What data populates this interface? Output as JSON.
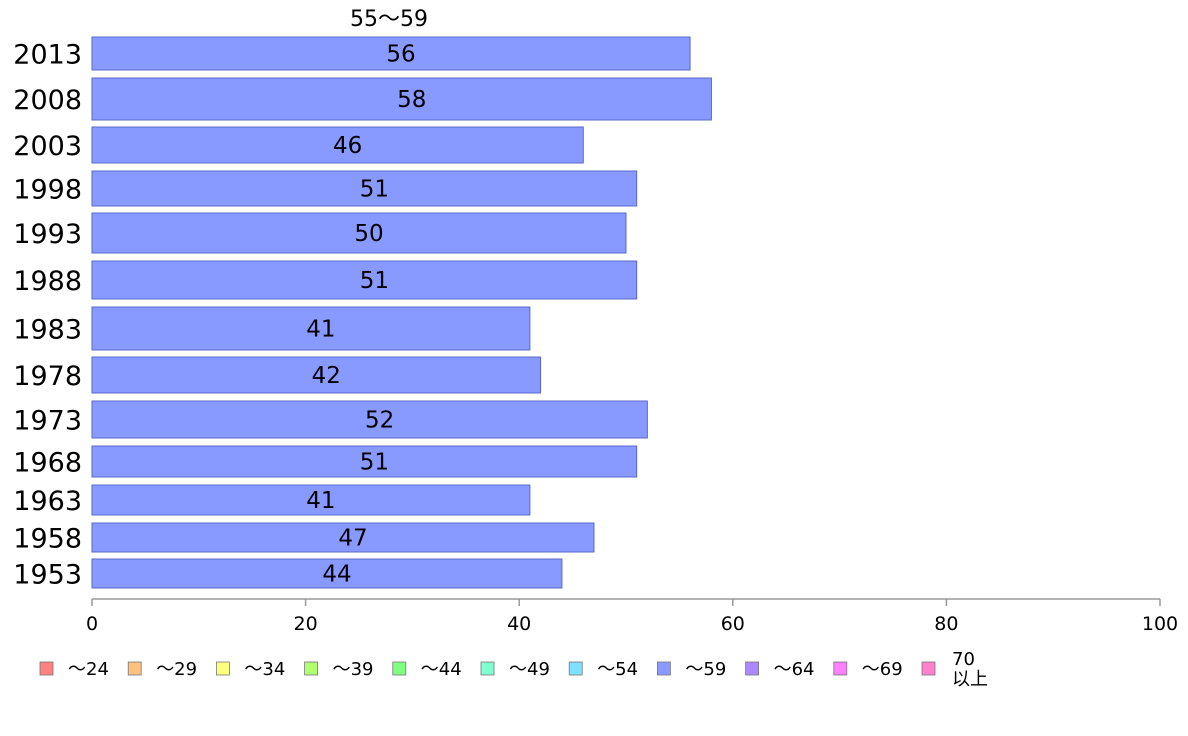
{
  "chart_data": {
    "type": "bar",
    "orientation": "horizontal",
    "series_header": "55〜59",
    "categories": [
      "2013",
      "2008",
      "2003",
      "1998",
      "1993",
      "1988",
      "1983",
      "1978",
      "1973",
      "1968",
      "1963",
      "1958",
      "1953"
    ],
    "series": [
      {
        "name": "〜59",
        "values": [
          56,
          58,
          46,
          51,
          50,
          51,
          41,
          42,
          52,
          51,
          41,
          47,
          44
        ]
      }
    ],
    "data_labels": [
      "56",
      "58",
      "46",
      "51",
      "50",
      "51",
      "41",
      "42",
      "52",
      "51",
      "41",
      "47",
      "44"
    ],
    "xlim": [
      0,
      100
    ],
    "x_ticks": [
      "0",
      "20",
      "40",
      "60",
      "80",
      "100"
    ],
    "grid": false,
    "legend_position": "bottom",
    "legend": [
      {
        "label": "〜24",
        "color": "#ff8080"
      },
      {
        "label": "〜29",
        "color": "#ffc080"
      },
      {
        "label": "〜34",
        "color": "#ffff80"
      },
      {
        "label": "〜39",
        "color": "#b0ff70"
      },
      {
        "label": "〜44",
        "color": "#80ff80"
      },
      {
        "label": "〜49",
        "color": "#80ffd0"
      },
      {
        "label": "〜54",
        "color": "#80e0ff"
      },
      {
        "label": "〜59",
        "color": "#8899ff"
      },
      {
        "label": "〜64",
        "color": "#aa88ff"
      },
      {
        "label": "〜69",
        "color": "#ff80ff"
      },
      {
        "label": "70以上",
        "color": "#ff80cc"
      }
    ],
    "bar_color": "#8899ff",
    "bar_stroke": "#5a68c8",
    "axis_color": "#999999"
  }
}
